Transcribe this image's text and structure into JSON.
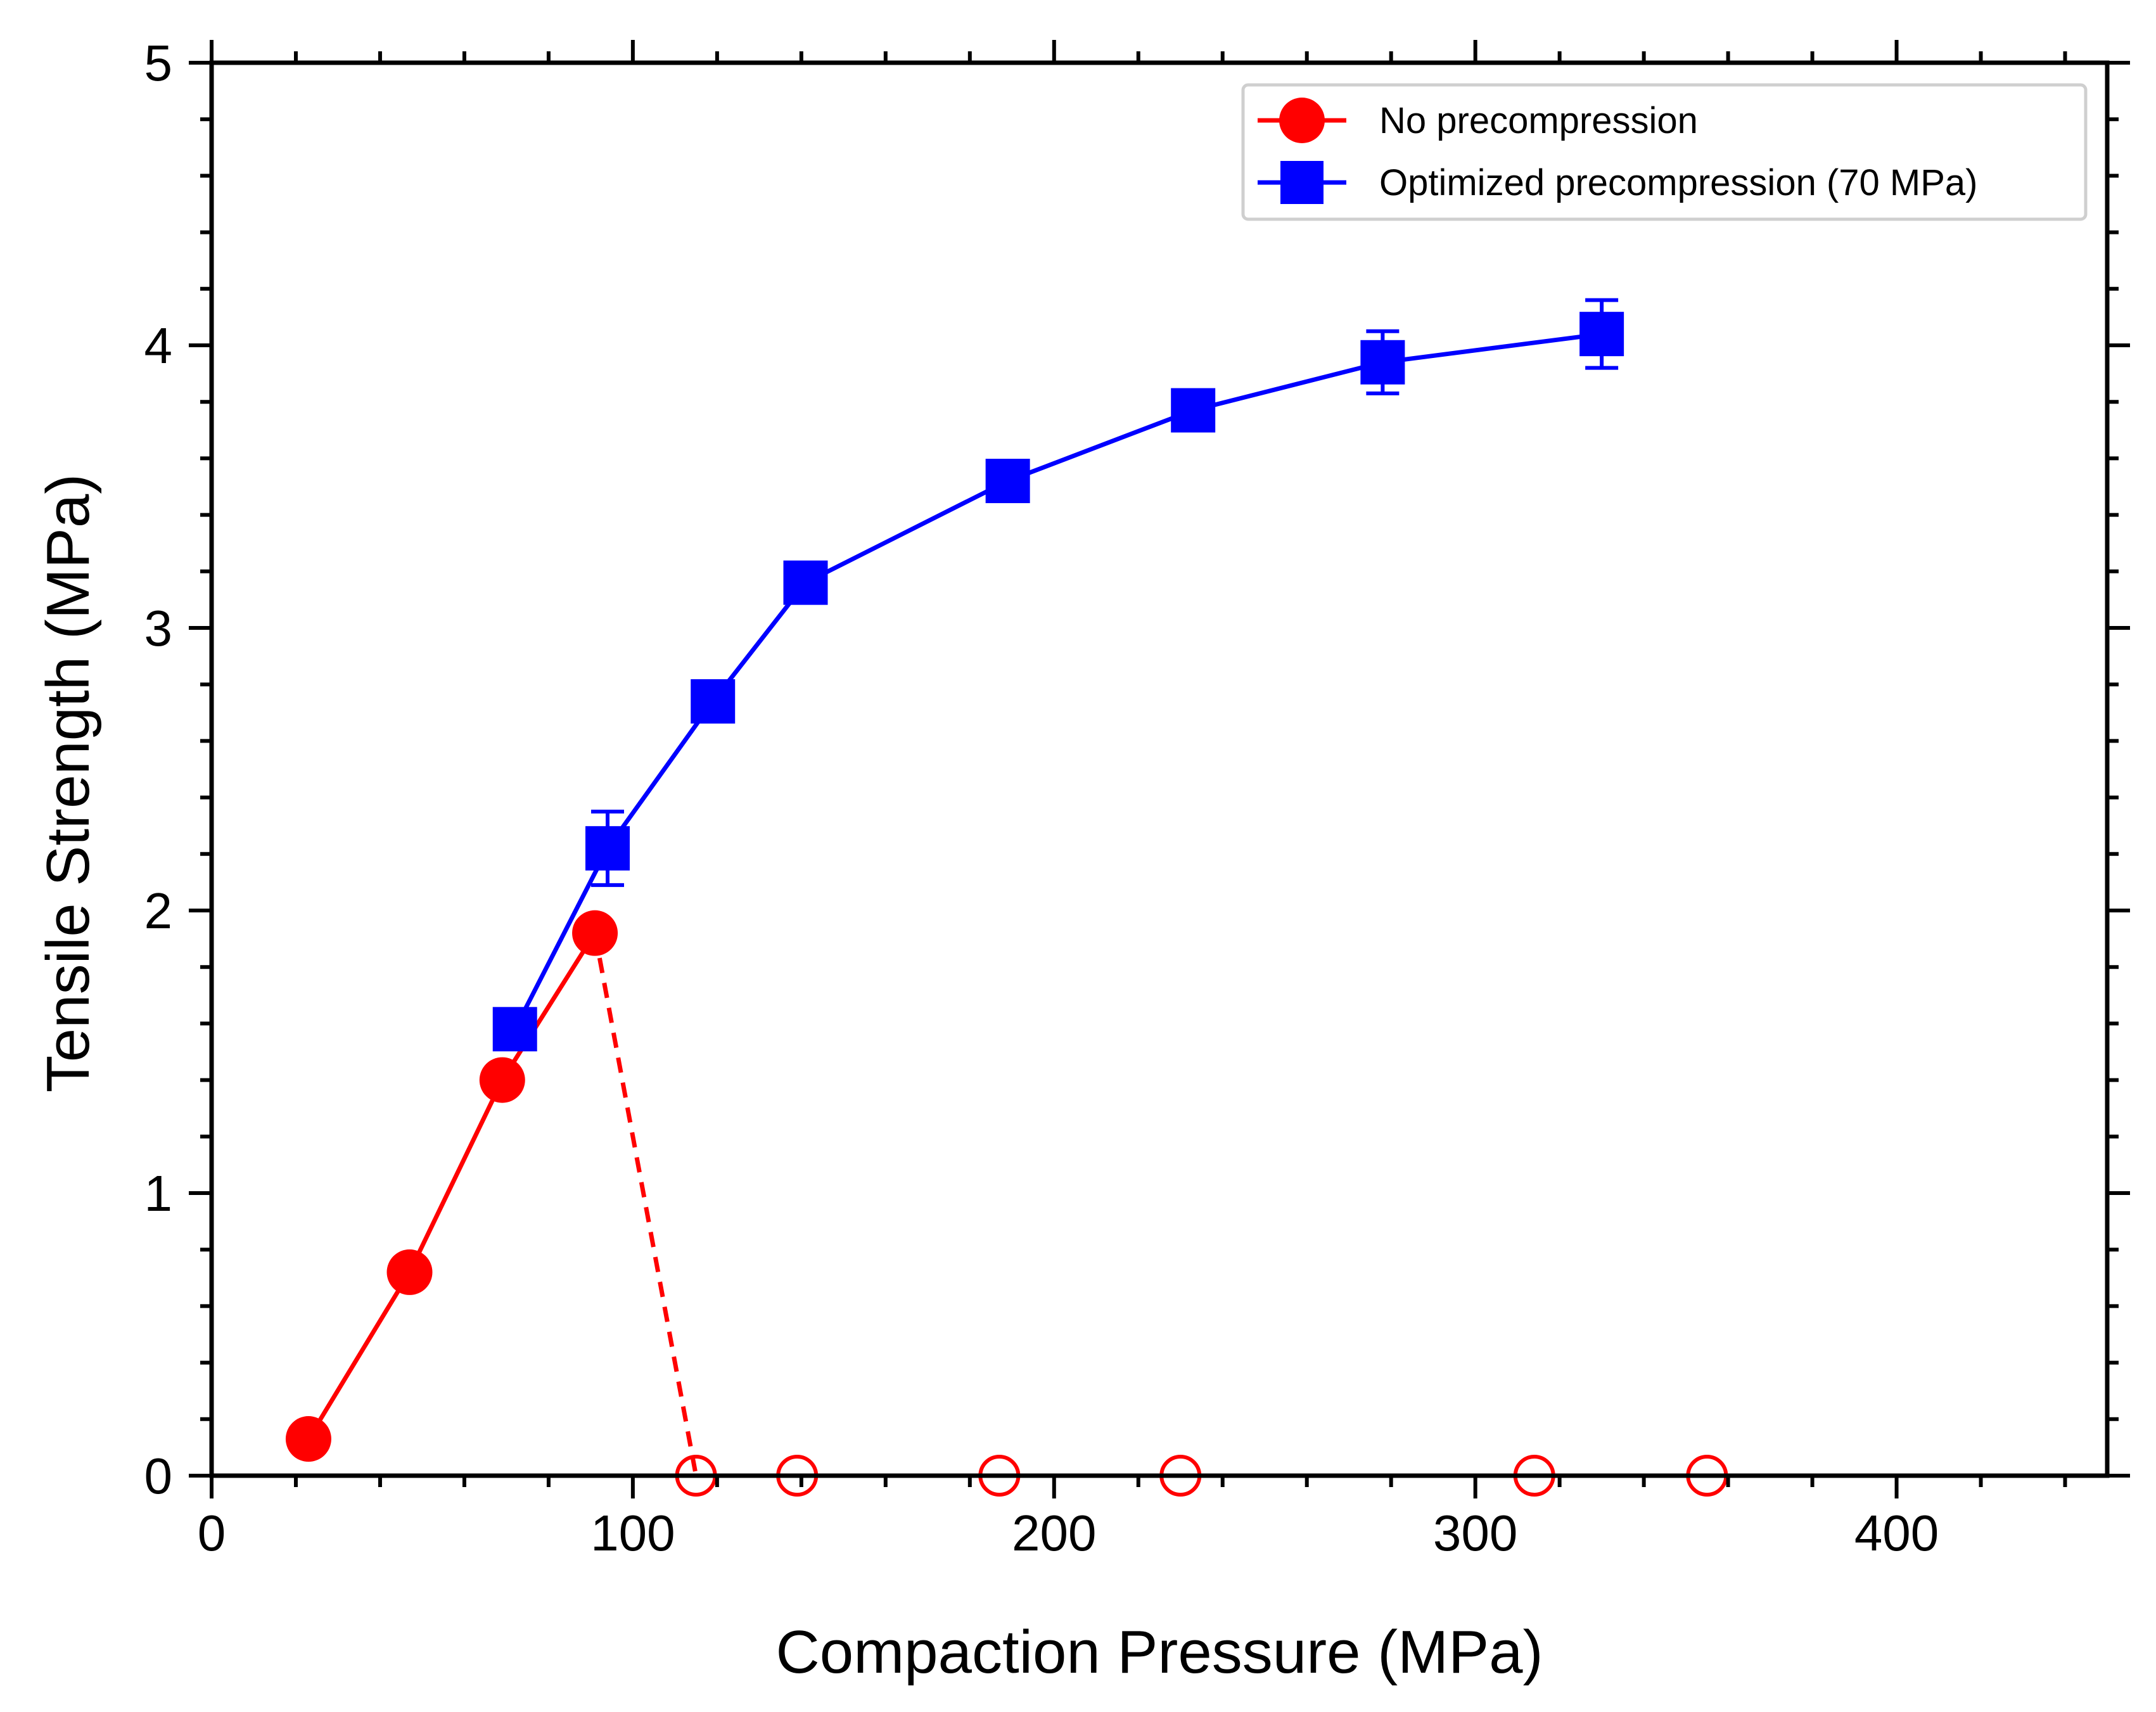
{
  "chart_data": {
    "type": "line",
    "xlabel": "Compaction Pressure (MPa)",
    "ylabel": "Tensile Strength (MPa)",
    "xlim": [
      0,
      450
    ],
    "ylim": [
      0,
      5
    ],
    "xticks": [
      "0",
      "100",
      "200",
      "300",
      "400"
    ],
    "yticks": [
      "0",
      "1",
      "2",
      "3",
      "4",
      "5"
    ],
    "grid": false,
    "legend_position": "top-right",
    "series": [
      {
        "name": "No precompression",
        "color": "#ff0000",
        "marker": "circle",
        "line": "solid",
        "points": [
          {
            "x": 23,
            "y": 0.13
          },
          {
            "x": 47,
            "y": 0.72
          },
          {
            "x": 69,
            "y": 1.4
          },
          {
            "x": 91,
            "y": 1.92
          }
        ],
        "failed_line": "dashed",
        "failed_points": [
          {
            "x": 115,
            "y": 0.0
          },
          {
            "x": 139,
            "y": 0.0
          },
          {
            "x": 187,
            "y": 0.0
          },
          {
            "x": 230,
            "y": 0.0
          },
          {
            "x": 314,
            "y": 0.0
          },
          {
            "x": 355,
            "y": 0.0
          }
        ],
        "failed_marker": "open circle"
      },
      {
        "name": "Optimized precompression (70 MPa)",
        "color": "#0000ff",
        "marker": "square",
        "line": "solid",
        "points": [
          {
            "x": 72,
            "y": 1.58,
            "err": 0.05
          },
          {
            "x": 94,
            "y": 2.22,
            "err": 0.13
          },
          {
            "x": 119,
            "y": 2.74,
            "err": 0.05
          },
          {
            "x": 141,
            "y": 3.16,
            "err": 0.04
          },
          {
            "x": 189,
            "y": 3.52,
            "err": 0.04
          },
          {
            "x": 233,
            "y": 3.77,
            "err": 0.04
          },
          {
            "x": 278,
            "y": 3.94,
            "err": 0.11
          },
          {
            "x": 330,
            "y": 4.04,
            "err": 0.12
          }
        ]
      }
    ]
  }
}
